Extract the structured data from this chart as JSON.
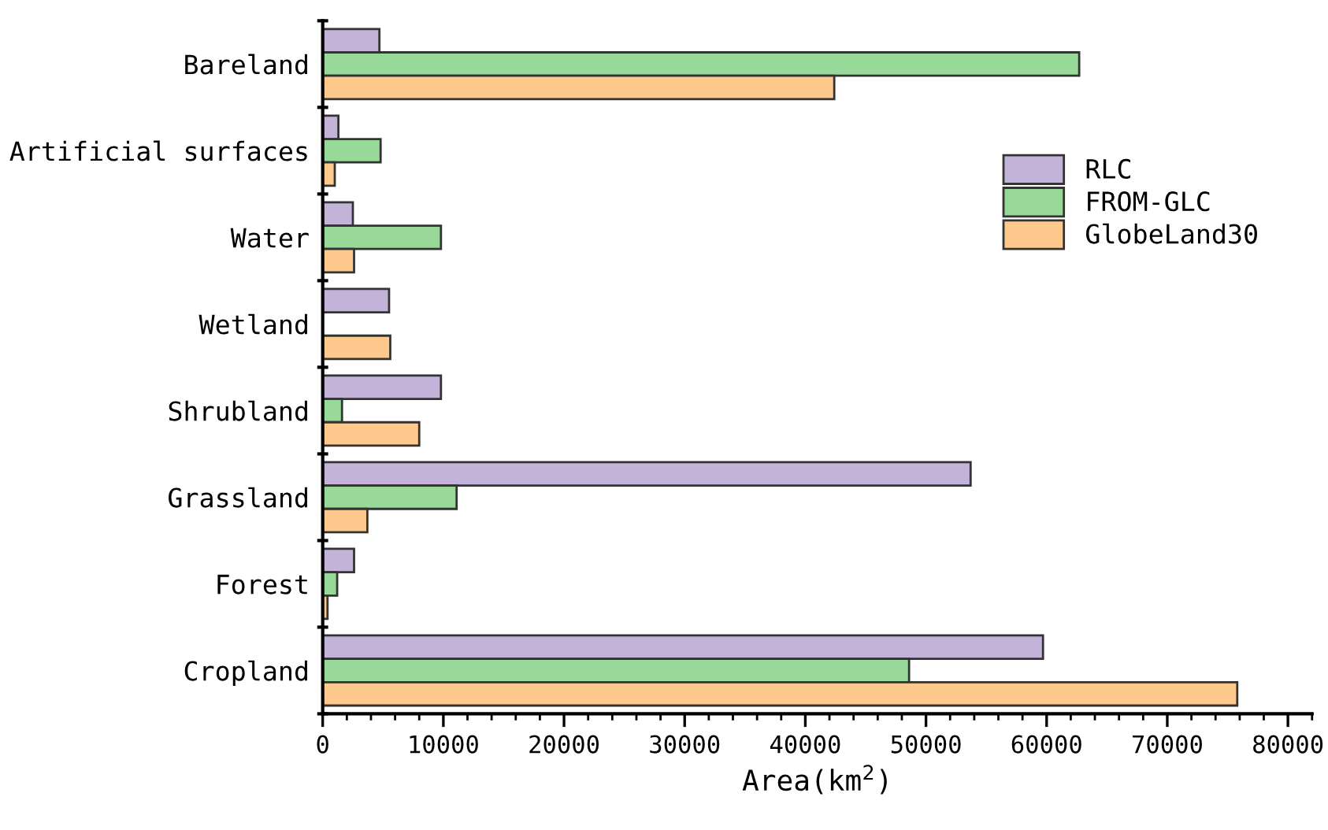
{
  "chart_data": {
    "type": "bar",
    "orientation": "horizontal",
    "xlabel": "Area(km$^{2}$)",
    "categories": [
      "Bareland",
      "Artificial surfaces",
      "Water",
      "Wetland",
      "Shrubland",
      "Grassland",
      "Forest",
      "Cropland"
    ],
    "series": [
      {
        "name": "RLC",
        "color": "#c3b3d9",
        "values": [
          4700,
          1300,
          2500,
          5500,
          9800,
          53700,
          2600,
          59700
        ]
      },
      {
        "name": "FROM-GLC",
        "color": "#98d99a",
        "values": [
          62700,
          4800,
          9800,
          null,
          1600,
          11100,
          1200,
          48600
        ]
      },
      {
        "name": "GlobeLand30",
        "color": "#fdc98c",
        "values": [
          42400,
          1000,
          2600,
          5600,
          8000,
          3700,
          400,
          75800
        ]
      }
    ],
    "xlim": [
      0,
      82000
    ],
    "xticks": [
      0,
      10000,
      20000,
      30000,
      40000,
      50000,
      60000,
      70000,
      80000
    ],
    "grid": false,
    "legend": "top right"
  }
}
